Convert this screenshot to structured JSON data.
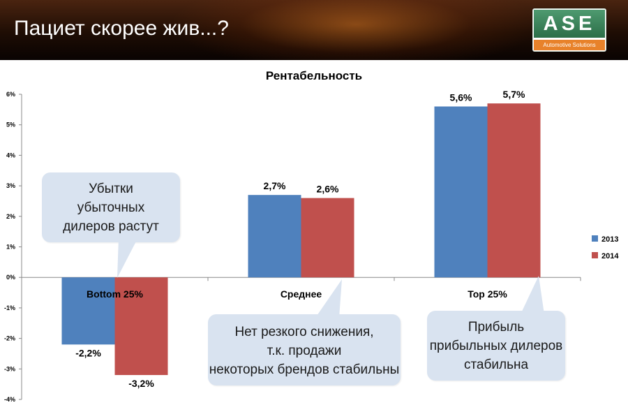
{
  "header": {
    "title": "Пациет скорее жив...?",
    "logo": {
      "main": "ASE",
      "sub": "Automotive Solutions"
    }
  },
  "chart_data": {
    "type": "bar",
    "title": "Рентабельность",
    "categories": [
      "Bottom 25%",
      "Среднее",
      "Top 25%"
    ],
    "series": [
      {
        "name": "2013",
        "color": "#4f81bd",
        "values": [
          -2.2,
          2.7,
          5.6
        ],
        "labels": [
          "-2,2%",
          "2,7%",
          "5,6%"
        ]
      },
      {
        "name": "2014",
        "color": "#c0504d",
        "values": [
          -3.2,
          2.6,
          5.7
        ],
        "labels": [
          "-3,2%",
          "2,6%",
          "5,7%"
        ]
      }
    ],
    "ylim": [
      -4,
      6
    ],
    "yticks": [
      6,
      5,
      4,
      3,
      2,
      1,
      0,
      -1,
      -2,
      -3,
      -4
    ],
    "ytick_labels": [
      "6%",
      "5%",
      "4%",
      "3%",
      "2%",
      "1%",
      "0%",
      "-1%",
      "-2%",
      "-3%",
      "-4%"
    ],
    "xlabel": "",
    "ylabel": "",
    "grid": false,
    "legend": "right"
  },
  "callouts": {
    "bottom": [
      "Убытки",
      "убыточных",
      "дилеров растут"
    ],
    "middle": [
      "Нет резкого снижения,",
      "т.к. продажи",
      "некоторых брендов стабильны"
    ],
    "top": [
      "Прибыль",
      "прибыльных дилеров",
      "стабильна"
    ]
  }
}
